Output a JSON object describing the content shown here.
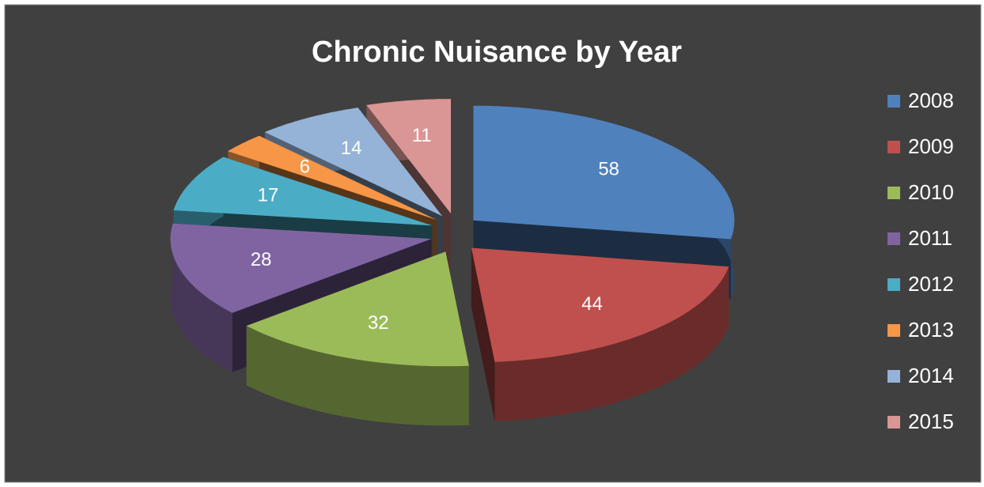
{
  "chart_data": {
    "type": "pie",
    "title": "Chronic Nuisance by Year",
    "categories": [
      "2008",
      "2009",
      "2010",
      "2011",
      "2012",
      "2013",
      "2014",
      "2015"
    ],
    "series": [
      {
        "name": "Chronic Nuisance",
        "values": [
          58,
          44,
          32,
          28,
          17,
          6,
          14,
          11
        ],
        "colors": [
          "#4f81bd",
          "#c0504d",
          "#9bbb59",
          "#8064a2",
          "#4bacc6",
          "#f79646",
          "#95b3d7",
          "#d99694"
        ]
      }
    ],
    "legend": "right"
  }
}
